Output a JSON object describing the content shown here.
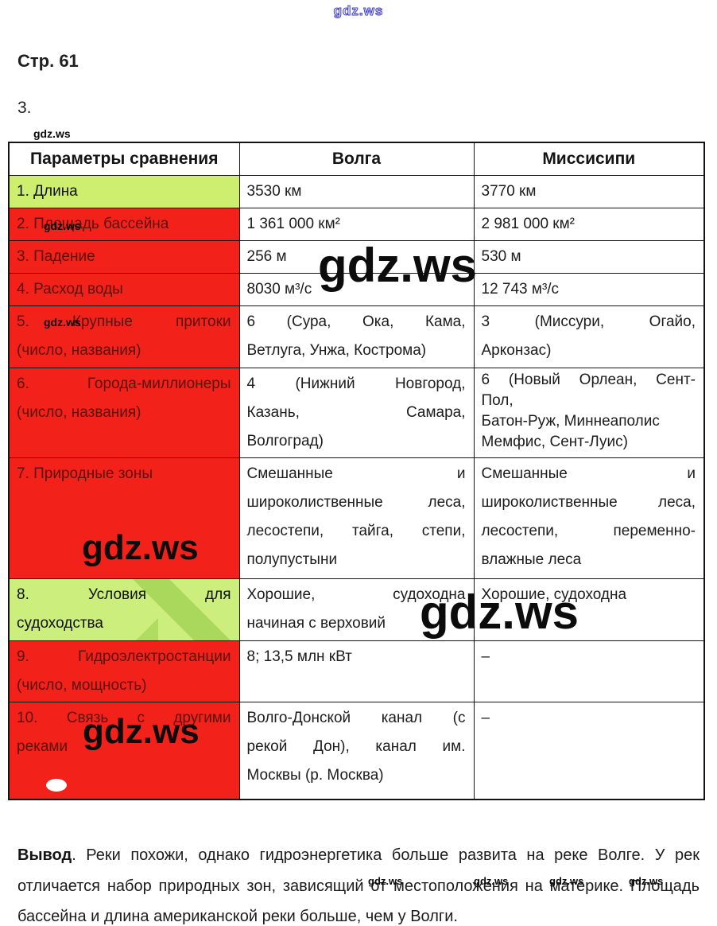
{
  "watermark": "gdz.ws",
  "page": {
    "title": "Стр. 61",
    "task_number": "3."
  },
  "colors": {
    "highlight_red": "#f2221a",
    "highlight_green": "#cdee6e",
    "red_cell_text": "#59110a",
    "watermark_blue": "#4545c6",
    "border_black": "#141414"
  },
  "table": {
    "headers": [
      "Параметры сравнения",
      "Волга",
      "Миссисипи"
    ],
    "rows": [
      {
        "highlight": "green",
        "param": [
          "1. Длина"
        ],
        "volga": [
          "3530 км"
        ],
        "mississippi": [
          "3770 км"
        ]
      },
      {
        "highlight": "red",
        "param": [
          "2. Площадь бассейна"
        ],
        "volga": [
          "1 361 000 км²"
        ],
        "mississippi": [
          "2 981 000 км²"
        ]
      },
      {
        "highlight": "red",
        "param": [
          "3. Падение"
        ],
        "volga": [
          "256 м"
        ],
        "mississippi": [
          "530 м"
        ]
      },
      {
        "highlight": "red",
        "param": [
          "4. Расход воды"
        ],
        "volga": [
          "8030 м³/с"
        ],
        "mississippi": [
          "12 743 м³/с"
        ]
      },
      {
        "highlight": "red",
        "param": [
          "5. Крупные притоки",
          "(число, названия)"
        ],
        "volga": [
          "6 (Сура, Ока, Кама,",
          "Ветлуга, Унжа, Кострома)"
        ],
        "mississippi": [
          "3 (Миссури, Огайо,",
          "Арконзас)"
        ]
      },
      {
        "highlight": "red",
        "param": [
          "6. Города-миллионеры",
          "(число, названия)"
        ],
        "volga": [
          "4 (Нижний Новгород,",
          "Казань, Самара,",
          "Волгоград)"
        ],
        "mississippi": [
          "6 (Новый Орлеан, Сент-",
          "Пол,",
          "Батон-Руж, Миннеаполис",
          "Мемфис, Сент-Луис)"
        ]
      },
      {
        "highlight": "red",
        "param": [
          "7. Природные зоны"
        ],
        "volga": [
          "Смешанные и",
          "широколиственные леса,",
          "лесостепи, тайга, степи,",
          "полупустыни"
        ],
        "mississippi": [
          "Смешанные и",
          "широколиственные леса,",
          "лесостепи, переменно-",
          "влажные леса"
        ]
      },
      {
        "highlight": "green pattern",
        "param": [
          "8. Условия для",
          "судоходства"
        ],
        "volga": [
          "Хорошие, судоходна",
          "начиная с верховий"
        ],
        "mississippi": [
          "Хорошие, судоходна"
        ]
      },
      {
        "highlight": "red",
        "param": [
          "9. Гидроэлектростанции",
          "(число, мощность)"
        ],
        "volga": [
          "8; 13,5 млн кВт"
        ],
        "mississippi": [
          "–"
        ]
      },
      {
        "highlight": "red",
        "param": [
          "10. Связь с другими",
          "реками"
        ],
        "volga": [
          "Волго-Донской канал (с",
          "рекой Дон), канал им.",
          "Москвы (р. Москва)"
        ],
        "mississippi": [
          "–"
        ]
      }
    ]
  },
  "conclusion": {
    "label": "Вывод",
    "text": ". Реки похожи, однако гидроэнергетика больше развита на реке Волге. У рек отличается набор природных зон, зависящий от местоположения на материке. Площадь бассейна и длина американской реки больше, чем у Волги."
  }
}
